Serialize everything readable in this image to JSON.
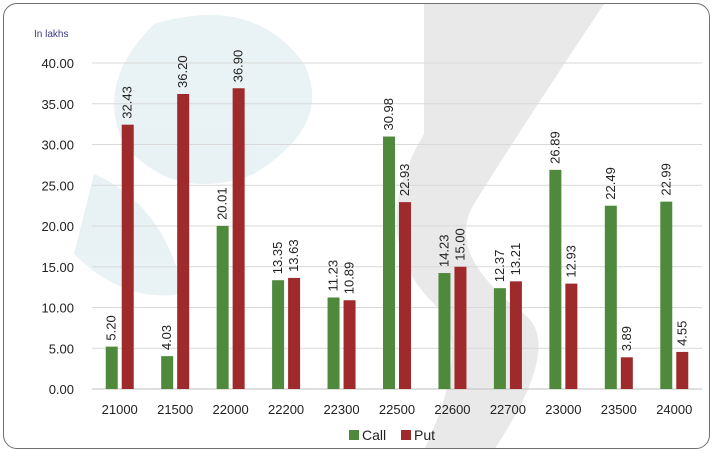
{
  "chart_data": {
    "type": "bar",
    "unit_label": "In lakhs",
    "categories": [
      "21000",
      "21500",
      "22000",
      "22200",
      "22300",
      "22500",
      "22600",
      "22700",
      "23000",
      "23500",
      "24000"
    ],
    "series": [
      {
        "name": "Call",
        "color": "#4f8a3c",
        "values": [
          5.2,
          4.03,
          20.01,
          13.35,
          11.23,
          30.98,
          14.23,
          12.37,
          26.89,
          22.49,
          22.99
        ]
      },
      {
        "name": "Put",
        "color": "#9e2a2b",
        "values": [
          32.43,
          36.2,
          36.9,
          13.63,
          10.89,
          22.93,
          15.0,
          13.21,
          12.93,
          3.89,
          4.55
        ]
      }
    ],
    "ylim": [
      0,
      40
    ],
    "yticks": [
      "0.00",
      "5.00",
      "10.00",
      "15.00",
      "20.00",
      "25.00",
      "30.00",
      "35.00",
      "40.00"
    ],
    "grid": true,
    "legend": "bottom-center"
  }
}
